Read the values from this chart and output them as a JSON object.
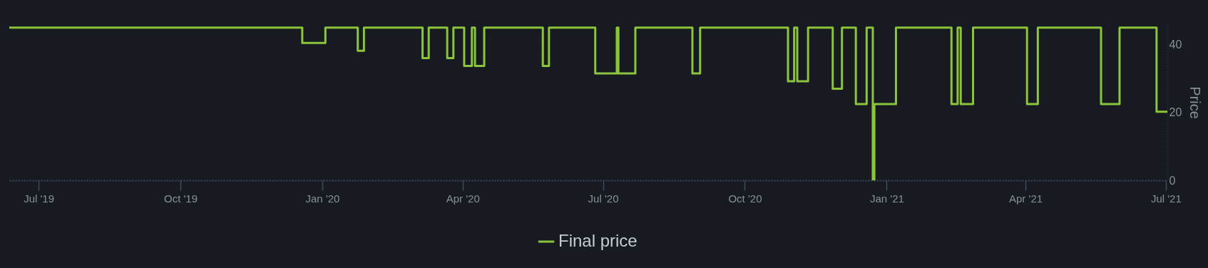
{
  "chart_data": {
    "type": "step",
    "ylabel": "Price",
    "legend": "bottom",
    "grid": false,
    "marker": "none",
    "line_style": "solid",
    "xlim": [
      "2019-06-12",
      "2021-07-02"
    ],
    "ylim": [
      0,
      46
    ],
    "yticks": [
      0,
      20,
      40
    ],
    "xticks": [
      {
        "value": "2019-07-01",
        "label": "Jul '19"
      },
      {
        "value": "2019-10-01",
        "label": "Oct '19"
      },
      {
        "value": "2020-01-01",
        "label": "Jan '20"
      },
      {
        "value": "2020-04-01",
        "label": "Apr '20"
      },
      {
        "value": "2020-07-01",
        "label": "Jul '20"
      },
      {
        "value": "2020-10-01",
        "label": "Oct '20"
      },
      {
        "value": "2021-01-01",
        "label": "Jan '21"
      },
      {
        "value": "2021-04-01",
        "label": "Apr '21"
      },
      {
        "value": "2021-07-01",
        "label": "Jul '21"
      }
    ],
    "series": [
      {
        "name": "Final price",
        "color": "#8cc43c",
        "x": [
          "2019-06-12",
          "2019-12-19",
          "2020-01-03",
          "2020-01-24",
          "2020-01-28",
          "2020-03-06",
          "2020-03-10",
          "2020-03-22",
          "2020-03-26",
          "2020-04-02",
          "2020-04-07",
          "2020-04-09",
          "2020-04-15",
          "2020-05-23",
          "2020-05-27",
          "2020-06-26",
          "2020-07-10",
          "2020-07-11",
          "2020-07-22",
          "2020-08-28",
          "2020-09-02",
          "2020-10-29",
          "2020-11-02",
          "2020-11-04",
          "2020-11-11",
          "2020-11-27",
          "2020-12-03",
          "2020-12-12",
          "2020-12-19",
          "2020-12-23",
          "2020-12-24",
          "2021-01-07",
          "2021-02-12",
          "2021-02-16",
          "2021-02-18",
          "2021-02-26",
          "2021-04-02",
          "2021-04-09",
          "2021-05-20",
          "2021-06-01",
          "2021-06-25",
          "2021-07-02"
        ],
        "values": [
          45,
          40.5,
          45,
          38.2,
          45,
          36,
          45,
          36,
          45,
          33.7,
          45,
          33.7,
          45,
          33.7,
          45,
          31.5,
          45,
          31.5,
          45,
          31.5,
          45,
          29.2,
          45,
          29.2,
          45,
          27,
          45,
          22.5,
          45,
          0,
          22.5,
          45,
          22.5,
          45,
          22.5,
          45,
          22.5,
          45,
          22.5,
          45,
          20.2,
          20.2
        ]
      }
    ]
  }
}
